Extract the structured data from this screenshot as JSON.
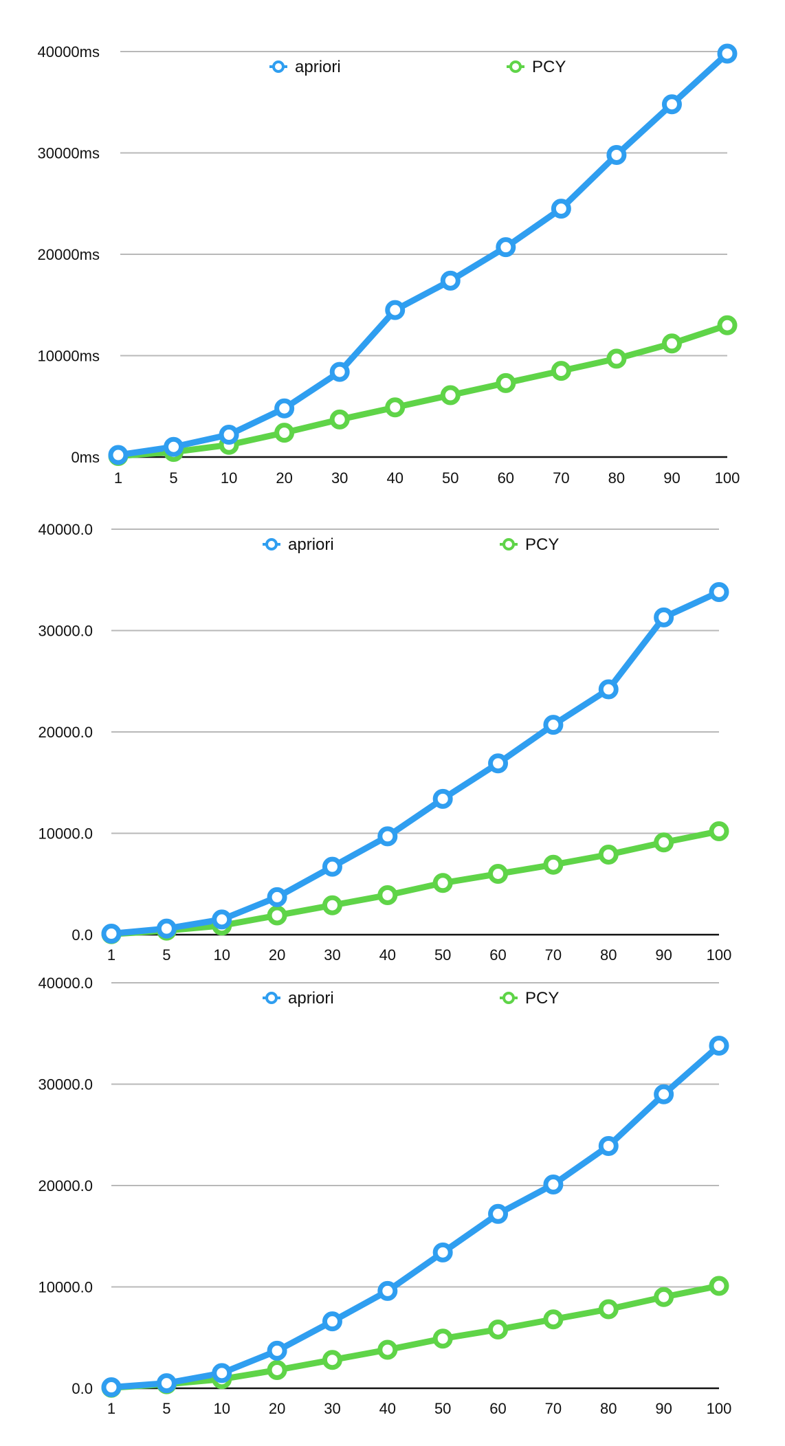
{
  "chart_data": [
    {
      "type": "line",
      "title": "",
      "xlabel": "",
      "ylabel": "",
      "categories": [
        "1",
        "5",
        "10",
        "20",
        "30",
        "40",
        "50",
        "60",
        "70",
        "80",
        "90",
        "100"
      ],
      "y_tick_labels": [
        "0ms",
        "10000ms",
        "20000ms",
        "30000ms",
        "40000ms"
      ],
      "y_ticks": [
        0,
        10000,
        20000,
        30000,
        40000
      ],
      "ylim": [
        0,
        40000
      ],
      "grid": true,
      "legend_position": "top",
      "series": [
        {
          "name": "apriori",
          "color": "#2f9ef0",
          "values": [
            200,
            1000,
            2200,
            4800,
            8400,
            14500,
            17400,
            20700,
            24500,
            29800,
            34800,
            39800
          ]
        },
        {
          "name": "PCY",
          "color": "#5fd448",
          "values": [
            100,
            500,
            1200,
            2400,
            3700,
            4900,
            6100,
            7300,
            8500,
            9700,
            11200,
            13000
          ]
        }
      ]
    },
    {
      "type": "line",
      "title": "",
      "xlabel": "",
      "ylabel": "",
      "categories": [
        "1",
        "5",
        "10",
        "20",
        "30",
        "40",
        "50",
        "60",
        "70",
        "80",
        "90",
        "100"
      ],
      "y_tick_labels": [
        "0.0",
        "10000.0",
        "20000.0",
        "30000.0",
        "40000.0"
      ],
      "y_ticks": [
        0,
        10000,
        20000,
        30000,
        40000
      ],
      "ylim": [
        0,
        40000
      ],
      "grid": true,
      "legend_position": "top",
      "series": [
        {
          "name": "apriori",
          "color": "#2f9ef0",
          "values": [
            100,
            600,
            1500,
            3700,
            6700,
            9700,
            13400,
            16900,
            20700,
            24200,
            31300,
            33800
          ]
        },
        {
          "name": "PCY",
          "color": "#5fd448",
          "values": [
            50,
            400,
            900,
            1900,
            2900,
            3900,
            5100,
            6000,
            6900,
            7900,
            9100,
            10200
          ]
        }
      ]
    },
    {
      "type": "line",
      "title": "",
      "xlabel": "",
      "ylabel": "",
      "categories": [
        "1",
        "5",
        "10",
        "20",
        "30",
        "40",
        "50",
        "60",
        "70",
        "80",
        "90",
        "100"
      ],
      "y_tick_labels": [
        "0.0",
        "10000.0",
        "20000.0",
        "30000.0",
        "40000.0"
      ],
      "y_ticks": [
        0,
        10000,
        20000,
        30000,
        40000
      ],
      "ylim": [
        0,
        40000
      ],
      "grid": true,
      "legend_position": "top",
      "series": [
        {
          "name": "apriori",
          "color": "#2f9ef0",
          "values": [
            100,
            500,
            1500,
            3700,
            6600,
            9600,
            13400,
            17200,
            20100,
            23900,
            29000,
            33800
          ]
        },
        {
          "name": "PCY",
          "color": "#5fd448",
          "values": [
            50,
            400,
            900,
            1800,
            2800,
            3800,
            4900,
            5800,
            6800,
            7800,
            9000,
            10100
          ]
        }
      ]
    }
  ]
}
